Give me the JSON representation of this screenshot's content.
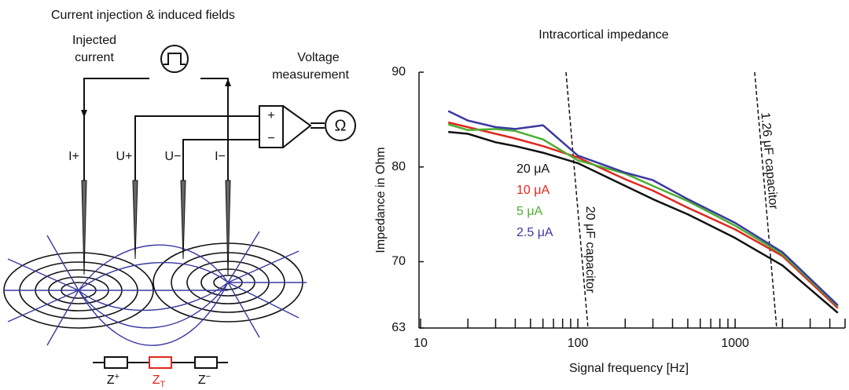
{
  "diagram": {
    "title": "Current injection & induced fields",
    "injected_label": [
      "Injected",
      "current"
    ],
    "voltage_label": [
      "Voltage",
      "measurement"
    ],
    "electrodes": [
      "I+",
      "U+",
      "U−",
      "I−"
    ],
    "amp_plus": "+",
    "amp_minus": "−",
    "ohm": "Ω",
    "impedances": [
      {
        "main": "Z",
        "sub": "+"
      },
      {
        "main": "Z",
        "sub": "T"
      },
      {
        "main": "Z",
        "sub": "−"
      }
    ]
  },
  "chart_data": {
    "type": "line",
    "title": "Intracortical impedance",
    "x_label": "Signal frequency [Hz]",
    "y_label": "Impedance in Ohm",
    "x": [
      15,
      20,
      30,
      40,
      60,
      100,
      200,
      300,
      500,
      1000,
      2000,
      4500
    ],
    "series": [
      {
        "name": "20 μA",
        "color": "#111111",
        "values": [
          83.7,
          83.5,
          82.6,
          82.2,
          81.5,
          80.4,
          78.0,
          76.6,
          75.0,
          72.5,
          69.6,
          64.6
        ]
      },
      {
        "name": "10 μA",
        "color": "#e0271e",
        "values": [
          84.7,
          84.2,
          83.5,
          83.0,
          82.2,
          81.0,
          78.7,
          77.5,
          75.7,
          73.4,
          70.6,
          65.1
        ]
      },
      {
        "name": "5 μA",
        "color": "#4caf32",
        "values": [
          84.5,
          83.9,
          84.0,
          83.8,
          82.9,
          80.7,
          79.3,
          78.0,
          76.4,
          73.8,
          70.8,
          65.3
        ]
      },
      {
        "name": "2.5 μA",
        "color": "#3a3aa0",
        "values": [
          85.9,
          84.9,
          84.2,
          84.0,
          84.4,
          81.2,
          79.4,
          78.6,
          76.6,
          74.1,
          71.0,
          65.4
        ]
      }
    ],
    "log_x": true,
    "xlim": [
      10,
      5000
    ],
    "xticks": [
      10,
      100,
      1000
    ],
    "x_minor_ticks": [
      20,
      30,
      40,
      50,
      60,
      70,
      80,
      90,
      200,
      300,
      400,
      500,
      600,
      700,
      800,
      900,
      2000,
      3000,
      4000,
      5000
    ],
    "ylim": [
      63,
      90
    ],
    "yticks": [
      63,
      70,
      80,
      90
    ],
    "annotations": [
      {
        "text": "20 μF capacitor"
      },
      {
        "text": "1.26 μF capacitor"
      }
    ]
  }
}
